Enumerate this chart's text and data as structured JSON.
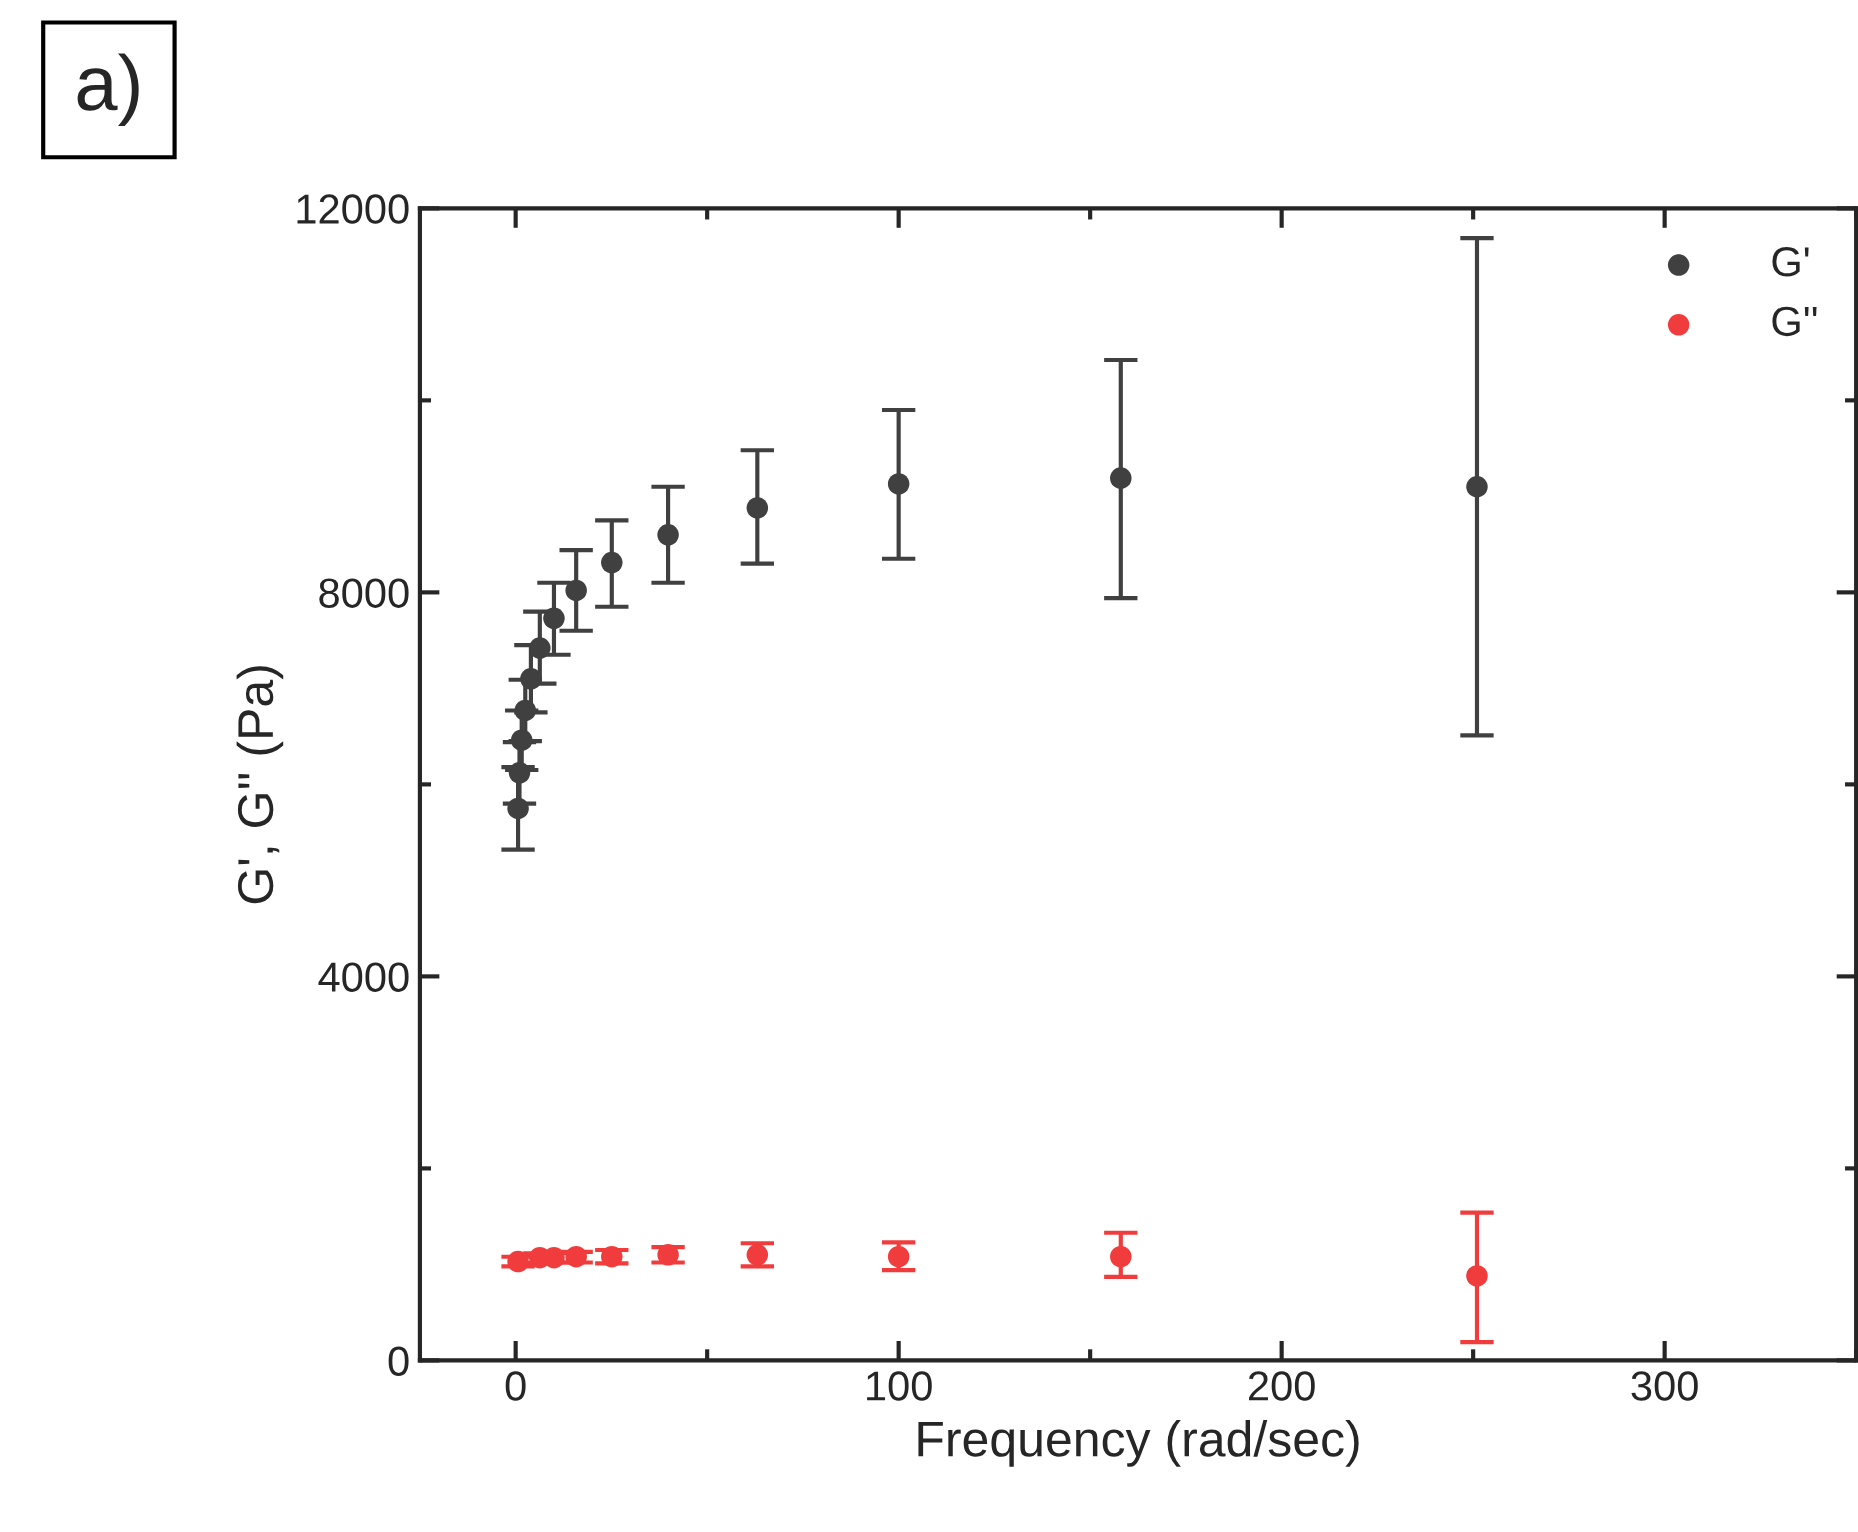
{
  "chart_data": {
    "type": "scatter",
    "xlabel": "Frequency (rad/sec)",
    "ylabel": "G', G'' (Pa)",
    "annotations": [
      "a)"
    ],
    "x": [
      0.631,
      1,
      1.58,
      2.51,
      3.98,
      6.31,
      10,
      15.8,
      25.1,
      39.8,
      63.1,
      100,
      158,
      251
    ],
    "series": [
      {
        "name": "G'",
        "color": "#404040",
        "values": [
          5750,
          6120,
          6460,
          6770,
          7100,
          7420,
          7730,
          8020,
          8310,
          8600,
          8880,
          9130,
          9190,
          9100
        ],
        "errors": [
          [
            5320,
            6180
          ],
          [
            5800,
            6440
          ],
          [
            6150,
            6770
          ],
          [
            6450,
            7090
          ],
          [
            6750,
            7450
          ],
          [
            7050,
            7800
          ],
          [
            7350,
            8100
          ],
          [
            7600,
            8440
          ],
          [
            7850,
            8750
          ],
          [
            8100,
            9100
          ],
          [
            8300,
            9480
          ],
          [
            8350,
            9900
          ],
          [
            7940,
            10420
          ],
          [
            6510,
            11690
          ]
        ]
      },
      {
        "name": "G''",
        "color": "#f03c3c",
        "values": [
          1030,
          null,
          null,
          null,
          null,
          1070,
          1070,
          1080,
          1080,
          1100,
          1100,
          1080,
          1080,
          880
        ],
        "errors": [
          [
            980,
            1080
          ],
          null,
          null,
          null,
          null,
          [
            1015,
            1115
          ],
          [
            1020,
            1120
          ],
          [
            1020,
            1130
          ],
          [
            1010,
            1150
          ],
          [
            1020,
            1180
          ],
          [
            980,
            1220
          ],
          [
            940,
            1230
          ],
          [
            870,
            1330
          ],
          [
            190,
            1540
          ]
        ]
      }
    ],
    "xlim": [
      -25,
      350
    ],
    "xticks": [
      0,
      100,
      200,
      300
    ],
    "ylim": [
      0,
      12000
    ],
    "yticks": [
      0,
      4000,
      8000,
      12000
    ],
    "marker": "circle",
    "grid": false,
    "legend": "top right"
  }
}
